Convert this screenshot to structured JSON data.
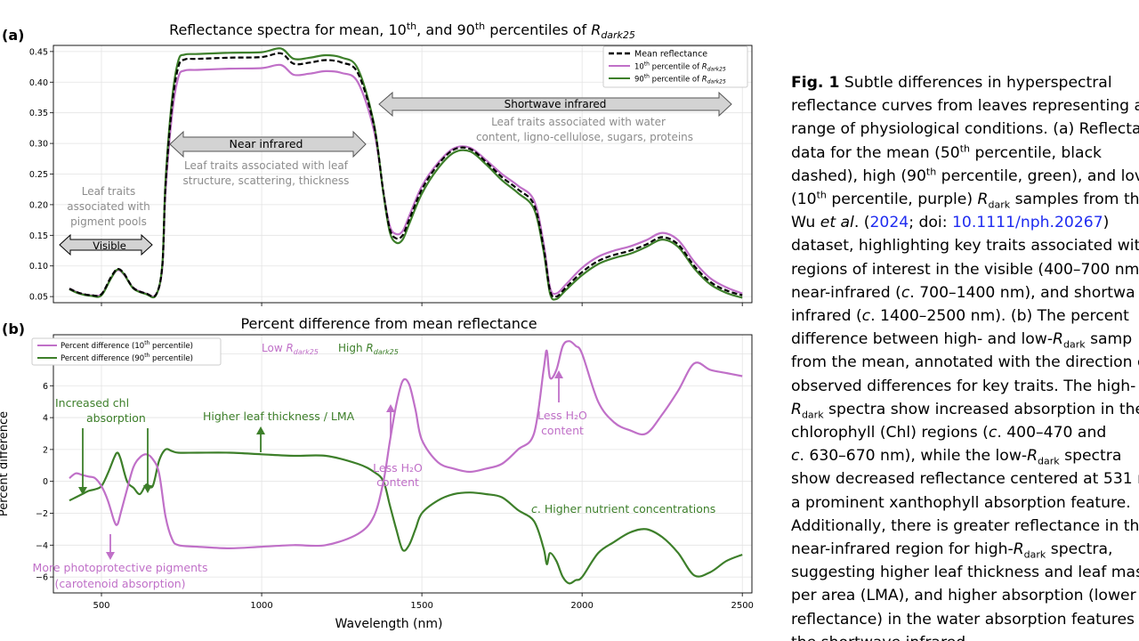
{
  "figure": {
    "panel_a_label": "(a)",
    "panel_b_label": "(b)",
    "panel_a_title": {
      "pre": "Reflectance spectra for mean, 10",
      "sup1": "th",
      "mid": ", and 90",
      "sup2": "th",
      "post": " percentiles of ",
      "sym": "R",
      "sub": "dark25"
    },
    "panel_b_title": "Percent difference from mean reflectance",
    "xlabel": "Wavelength (nm)",
    "ylabel_b": "Percent difference",
    "xticks": [
      500,
      1000,
      1500,
      2000,
      2500
    ],
    "yticks_a": [
      "0.05",
      "0.10",
      "0.15",
      "0.20",
      "0.25",
      "0.30",
      "0.35",
      "0.40",
      "0.45"
    ],
    "yticks_b": [
      "−6",
      "−4",
      "−2",
      "0",
      "2",
      "4",
      "6",
      "8"
    ],
    "legend_a": {
      "mean": "Mean  reflectance",
      "p10": {
        "pre": "10",
        "sup": "th",
        "post": " percentile of ",
        "sym": "R",
        "sub": "dark25"
      },
      "p90": {
        "pre": "90",
        "sup": "th",
        "post": " percentile of ",
        "sym": "R",
        "sub": "dark25"
      }
    },
    "legend_b": {
      "p10": {
        "pre": "Percent difference (10",
        "sup": "th",
        "post": " percentile)"
      },
      "p90": {
        "pre": "Percent difference (90",
        "sup": "th",
        "post": " percentile)"
      }
    },
    "region_arrows": {
      "visible": "Visible",
      "nir": "Near infrared",
      "swir": "Shortwave infrared"
    },
    "region_notes": {
      "visible": [
        "Leaf traits",
        "associated with",
        "pigment pools"
      ],
      "nir": [
        "Leaf traits associated with leaf",
        "structure, scattering, thickness"
      ],
      "swir": [
        "Leaf traits associated with water",
        "content, ligno-cellulose, sugars, proteins"
      ]
    },
    "annotations_b": {
      "low": {
        "pre": "Low ",
        "sym": "R",
        "sub": "dark25"
      },
      "high": {
        "pre": "High ",
        "sym": "R",
        "sub": "dark25"
      },
      "chl": [
        "Increased chl",
        "absorption"
      ],
      "thickness": "Higher leaf thickness / LMA",
      "less_h2o_1": [
        "Less H₂O",
        "content"
      ],
      "less_h2o_2": [
        "Less H₂O",
        "content"
      ],
      "nutrients": "c. Higher nutrient concentrations",
      "pigments": [
        "More photoprotective pigments",
        "(carotenoid absorption)"
      ]
    },
    "colors": {
      "mean": "#000000",
      "p10": "#c070c8",
      "p90": "#3d7f2a",
      "arrow_fill": "#d3d3d3",
      "note_gray": "#8c8c8c"
    }
  },
  "caption": {
    "label": "Fig. 1",
    "lines": [
      "Subtle differences in hyperspectral",
      "reflectance curves from leaves representing a",
      "range of physiological conditions. (a) Reflecta",
      "data for the mean (50<sup>th</sup> percentile, black",
      "dashed), high (90<sup>th</sup> percentile, green), and lov",
      "(10<sup>th</sup> percentile, purple) <i>R</i><sub>dark</sub> samples from th",
      "Wu <i>et al</i>. (<a>2024</a>; doi: <a>10.1111/nph.20267</a>)",
      "dataset, highlighting key traits associated with",
      "regions of interest in the visible (400–700 nm",
      "near-infrared (<i>c</i>. 700–1400 nm), and shortwa",
      "infrared (<i>c</i>. 1400–2500 nm). (b) The percent",
      "difference between high- and low-<i>R</i><sub>dark</sub> samp",
      "from the mean, annotated with the direction o",
      "observed differences for key traits. The high-",
      "<i>R</i><sub>dark</sub> spectra show increased absorption in the",
      "chlorophyll (Chl) regions (<i>c</i>. 400–470 and",
      "<i>c</i>. 630–670 nm), while the low-<i>R</i><sub>dark</sub> spectra",
      "show decreased reflectance centered at 531 n",
      "a prominent xanthophyll absorption feature.",
      "Additionally, there is greater reflectance in the",
      "near-infrared region for high-<i>R</i><sub>dark</sub> spectra,",
      "suggesting higher leaf thickness and leaf mass",
      "per area (LMA), and higher absorption (lower",
      "reflectance) in the water absorption features i",
      "the shortwave infrared."
    ]
  },
  "chart_data": [
    {
      "type": "line",
      "title": "Reflectance spectra for mean, 10th, and 90th percentiles of R_dark25",
      "xlabel": "",
      "ylabel": "",
      "xlim": [
        350,
        2530
      ],
      "ylim": [
        0.04,
        0.46
      ],
      "grid": true,
      "legend": "top-right",
      "series": [
        {
          "name": "Mean  reflectance",
          "key": "mean",
          "x": [
            400,
            430,
            470,
            500,
            530,
            550,
            570,
            600,
            640,
            670,
            690,
            700,
            720,
            740,
            760,
            800,
            900,
            1000,
            1060,
            1100,
            1150,
            1200,
            1250,
            1300,
            1350,
            1380,
            1400,
            1420,
            1440,
            1460,
            1500,
            1550,
            1600,
            1650,
            1700,
            1750,
            1800,
            1850,
            1880,
            1900,
            1920,
            1950,
            2000,
            2050,
            2100,
            2150,
            2200,
            2250,
            2300,
            2350,
            2400,
            2450,
            2500
          ],
          "y": [
            0.063,
            0.056,
            0.052,
            0.054,
            0.082,
            0.095,
            0.088,
            0.064,
            0.055,
            0.053,
            0.1,
            0.23,
            0.36,
            0.425,
            0.437,
            0.438,
            0.44,
            0.441,
            0.447,
            0.43,
            0.432,
            0.436,
            0.432,
            0.415,
            0.33,
            0.22,
            0.16,
            0.145,
            0.15,
            0.175,
            0.225,
            0.265,
            0.29,
            0.291,
            0.27,
            0.245,
            0.225,
            0.2,
            0.13,
            0.06,
            0.05,
            0.065,
            0.09,
            0.108,
            0.118,
            0.125,
            0.135,
            0.147,
            0.135,
            0.1,
            0.074,
            0.06,
            0.052
          ]
        },
        {
          "name": "10th percentile of R_dark25",
          "key": "p10",
          "x": [
            400,
            430,
            470,
            500,
            530,
            550,
            570,
            600,
            640,
            670,
            690,
            700,
            720,
            740,
            760,
            800,
            900,
            1000,
            1060,
            1100,
            1150,
            1200,
            1250,
            1300,
            1350,
            1380,
            1400,
            1420,
            1440,
            1460,
            1500,
            1550,
            1600,
            1650,
            1700,
            1750,
            1800,
            1850,
            1880,
            1900,
            1920,
            1950,
            2000,
            2050,
            2100,
            2150,
            2200,
            2250,
            2300,
            2350,
            2400,
            2450,
            2500
          ],
          "y": [
            0.063,
            0.056,
            0.052,
            0.054,
            0.08,
            0.093,
            0.086,
            0.064,
            0.055,
            0.053,
            0.097,
            0.22,
            0.345,
            0.408,
            0.419,
            0.42,
            0.422,
            0.423,
            0.428,
            0.412,
            0.414,
            0.418,
            0.415,
            0.4,
            0.322,
            0.22,
            0.165,
            0.152,
            0.157,
            0.181,
            0.23,
            0.268,
            0.292,
            0.293,
            0.273,
            0.25,
            0.231,
            0.207,
            0.137,
            0.065,
            0.055,
            0.07,
            0.097,
            0.115,
            0.125,
            0.132,
            0.142,
            0.154,
            0.142,
            0.107,
            0.08,
            0.065,
            0.055
          ]
        },
        {
          "name": "90th percentile of R_dark25",
          "key": "p90",
          "x": [
            400,
            430,
            470,
            500,
            530,
            550,
            570,
            600,
            640,
            670,
            690,
            700,
            720,
            740,
            760,
            800,
            900,
            1000,
            1060,
            1100,
            1150,
            1200,
            1250,
            1300,
            1350,
            1380,
            1400,
            1420,
            1440,
            1460,
            1500,
            1550,
            1600,
            1650,
            1700,
            1750,
            1800,
            1850,
            1880,
            1900,
            1920,
            1950,
            2000,
            2050,
            2100,
            2150,
            2200,
            2250,
            2300,
            2350,
            2400,
            2450,
            2500
          ],
          "y": [
            0.062,
            0.055,
            0.051,
            0.052,
            0.08,
            0.094,
            0.087,
            0.063,
            0.054,
            0.052,
            0.102,
            0.238,
            0.37,
            0.435,
            0.445,
            0.446,
            0.448,
            0.449,
            0.455,
            0.438,
            0.44,
            0.444,
            0.44,
            0.422,
            0.333,
            0.218,
            0.155,
            0.138,
            0.143,
            0.168,
            0.218,
            0.259,
            0.285,
            0.287,
            0.266,
            0.24,
            0.219,
            0.193,
            0.124,
            0.055,
            0.046,
            0.061,
            0.085,
            0.103,
            0.113,
            0.12,
            0.131,
            0.143,
            0.131,
            0.096,
            0.07,
            0.056,
            0.048
          ]
        }
      ]
    },
    {
      "type": "line",
      "title": "Percent difference from mean reflectance",
      "xlabel": "Wavelength (nm)",
      "ylabel": "Percent difference",
      "xlim": [
        350,
        2530
      ],
      "ylim": [
        -7,
        9.2
      ],
      "grid": true,
      "legend": "top-left",
      "series": [
        {
          "name": "Percent difference (10th percentile)",
          "key": "p10",
          "x": [
            400,
            420,
            440,
            460,
            480,
            500,
            520,
            540,
            550,
            560,
            580,
            600,
            620,
            640,
            660,
            680,
            700,
            720,
            740,
            800,
            900,
            1000,
            1100,
            1200,
            1300,
            1350,
            1380,
            1400,
            1420,
            1440,
            1460,
            1480,
            1500,
            1550,
            1600,
            1650,
            1700,
            1750,
            1800,
            1850,
            1880,
            1890,
            1900,
            1920,
            1940,
            1960,
            1980,
            2000,
            2050,
            2100,
            2150,
            2200,
            2250,
            2300,
            2350,
            2400,
            2450,
            2500
          ],
          "y": [
            0.2,
            0.5,
            0.4,
            0.3,
            0.2,
            -0.3,
            -1.2,
            -2.5,
            -2.7,
            -2.0,
            -0.5,
            0.9,
            1.5,
            1.7,
            1.4,
            0.5,
            -2.2,
            -3.6,
            -4.0,
            -4.1,
            -4.2,
            -4.1,
            -4.0,
            -4.0,
            -3.3,
            -2.2,
            0.0,
            2.5,
            4.8,
            6.3,
            6.1,
            4.5,
            2.6,
            1.2,
            0.8,
            0.6,
            0.8,
            1.1,
            2.0,
            3.0,
            7.0,
            8.2,
            6.5,
            7.0,
            8.5,
            8.8,
            8.5,
            8.0,
            5.0,
            3.7,
            3.2,
            3.0,
            4.2,
            5.7,
            7.4,
            7.0,
            6.8,
            6.6
          ]
        },
        {
          "name": "Percent difference (90th percentile)",
          "key": "p90",
          "x": [
            400,
            420,
            440,
            460,
            480,
            500,
            520,
            540,
            550,
            560,
            580,
            600,
            620,
            640,
            660,
            680,
            700,
            720,
            740,
            800,
            900,
            1000,
            1100,
            1200,
            1300,
            1350,
            1380,
            1400,
            1420,
            1440,
            1460,
            1480,
            1500,
            1550,
            1600,
            1650,
            1700,
            1750,
            1800,
            1850,
            1880,
            1890,
            1900,
            1920,
            1940,
            1960,
            1980,
            2000,
            2050,
            2100,
            2150,
            2200,
            2250,
            2300,
            2350,
            2400,
            2450,
            2500
          ],
          "y": [
            -1.2,
            -1.0,
            -0.8,
            -0.6,
            -0.5,
            -0.3,
            0.5,
            1.5,
            1.8,
            1.4,
            0.0,
            -0.4,
            -0.8,
            -0.2,
            -0.3,
            1.3,
            2.0,
            1.9,
            1.8,
            1.8,
            1.8,
            1.7,
            1.6,
            1.6,
            1.1,
            0.6,
            0.0,
            -1.5,
            -3.0,
            -4.3,
            -4.0,
            -3.0,
            -2.0,
            -1.2,
            -0.8,
            -0.7,
            -0.8,
            -1.0,
            -1.8,
            -2.5,
            -4.2,
            -5.2,
            -4.5,
            -5.0,
            -6.0,
            -6.4,
            -6.2,
            -6.0,
            -4.5,
            -3.8,
            -3.2,
            -3.0,
            -3.5,
            -4.5,
            -5.9,
            -5.7,
            -5.0,
            -4.6
          ]
        }
      ]
    }
  ]
}
